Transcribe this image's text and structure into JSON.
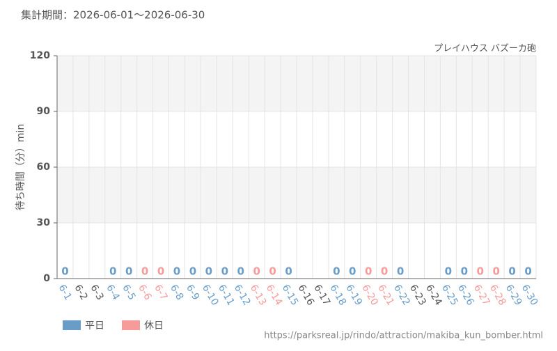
{
  "chart_data": {
    "type": "bar",
    "title": "集計期間：2026-06-01～2026-06-30",
    "subtitle": "プレイハウス バズーカ砲",
    "y_label": "待ち時間（分）min",
    "source": "https://parksreal.jp/rindo/attraction/makiba_kun_bomber.html",
    "categories": [
      "6-1",
      "6-2",
      "6-3",
      "6-4",
      "6-5",
      "6-6",
      "6-7",
      "6-8",
      "6-9",
      "6-10",
      "6-11",
      "6-12",
      "6-13",
      "6-14",
      "6-15",
      "6-16",
      "6-17",
      "6-18",
      "6-19",
      "6-20",
      "6-21",
      "6-22",
      "6-23",
      "6-24",
      "6-25",
      "6-26",
      "6-27",
      "6-28",
      "6-29",
      "6-30"
    ],
    "series": [
      {
        "name": "平日",
        "color": "#6a9cc8",
        "values": [
          0,
          null,
          null,
          0,
          0,
          null,
          null,
          0,
          0,
          0,
          0,
          0,
          null,
          null,
          0,
          null,
          null,
          0,
          0,
          null,
          null,
          0,
          null,
          null,
          0,
          0,
          null,
          null,
          0,
          0
        ]
      },
      {
        "name": "休日",
        "color": "#f79a9a",
        "values": [
          null,
          null,
          null,
          null,
          null,
          0,
          0,
          null,
          null,
          null,
          null,
          null,
          0,
          0,
          null,
          null,
          null,
          null,
          null,
          0,
          0,
          null,
          null,
          null,
          null,
          null,
          0,
          0,
          null,
          null
        ]
      }
    ],
    "ylim": [
      0,
      120
    ],
    "yticks": [
      0,
      30,
      60,
      90,
      120
    ],
    "grid": true,
    "legend": "bottom-left"
  }
}
